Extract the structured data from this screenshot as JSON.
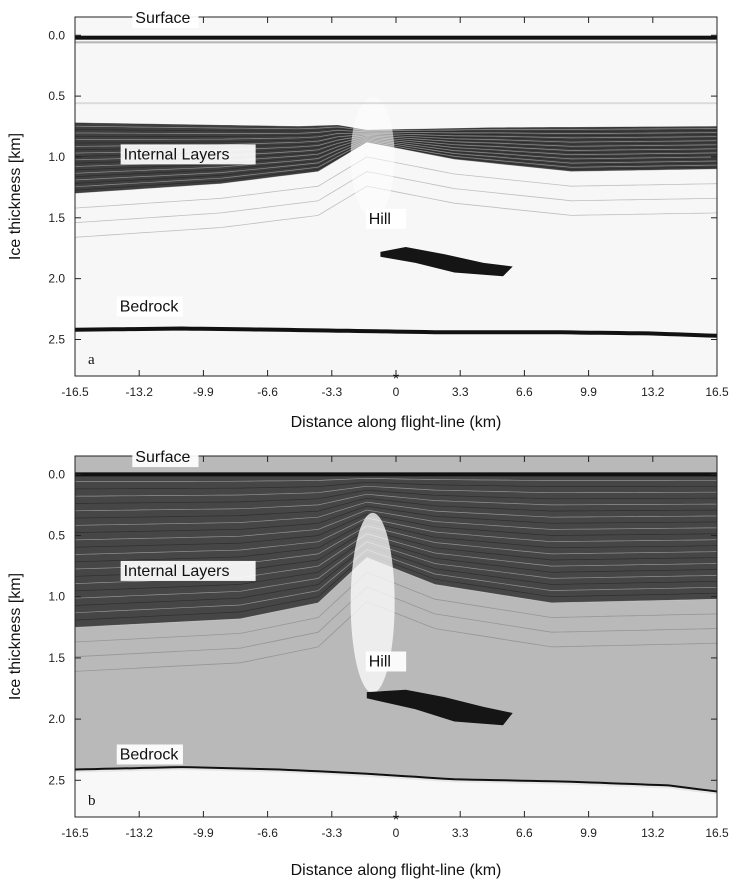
{
  "chart_data": [
    {
      "type": "heatmap",
      "panel_label": "a",
      "xlabel": "Distance along flight-line (km)",
      "ylabel": "Ice thickness [km]",
      "xlim": [
        -16.5,
        16.5
      ],
      "ylim": [
        2.8,
        -0.15
      ],
      "x_ticks": [
        "-16.5",
        "-13.2",
        "-9.9",
        "-6.6",
        "-3.3",
        "0",
        "3.3",
        "6.6",
        "9.9",
        "13.2",
        "16.5"
      ],
      "y_ticks": [
        "0.0",
        "0.5",
        "1.0",
        "1.5",
        "2.0",
        "2.5"
      ],
      "marker": "*",
      "background": "#f7f7f7",
      "annotations": [
        {
          "text": "Surface",
          "x": -13.4,
          "y": -0.1
        },
        {
          "text": "Internal Layers",
          "x": -14.0,
          "y": 1.02
        },
        {
          "text": "Hill",
          "x": -1.4,
          "y": 1.55
        },
        {
          "text": "Bedrock",
          "x": -14.2,
          "y": 2.27
        }
      ],
      "features": {
        "surface_depth": 0.02,
        "layer_band_top": [
          [
            -16.5,
            0.72
          ],
          [
            -5,
            0.75
          ],
          [
            -3,
            0.74
          ],
          [
            -1.5,
            0.78
          ],
          [
            5,
            0.76
          ],
          [
            16.5,
            0.75
          ]
        ],
        "layer_band_bottom": [
          [
            -16.5,
            1.3
          ],
          [
            -9,
            1.22
          ],
          [
            -4,
            1.12
          ],
          [
            -1.5,
            0.88
          ],
          [
            3,
            1.02
          ],
          [
            9,
            1.12
          ],
          [
            16.5,
            1.1
          ]
        ],
        "bedrock": [
          [
            -16.5,
            2.42
          ],
          [
            -11,
            2.41
          ],
          [
            -6,
            2.42
          ],
          [
            -2,
            2.43
          ],
          [
            2,
            2.44
          ],
          [
            8,
            2.44
          ],
          [
            13,
            2.45
          ],
          [
            16.5,
            2.47
          ]
        ],
        "hill": [
          [
            -0.8,
            1.78
          ],
          [
            0.5,
            1.74
          ],
          [
            2.5,
            1.8
          ],
          [
            4.5,
            1.87
          ],
          [
            6,
            1.9
          ],
          [
            5.5,
            1.98
          ],
          [
            3,
            1.95
          ],
          [
            1,
            1.87
          ],
          [
            -0.8,
            1.82
          ]
        ]
      }
    },
    {
      "type": "heatmap",
      "panel_label": "b",
      "xlabel": "Distance along flight-line (km)",
      "ylabel": "Ice thickness [km]",
      "xlim": [
        -16.5,
        16.5
      ],
      "ylim": [
        2.8,
        -0.15
      ],
      "x_ticks": [
        "-16.5",
        "-13.2",
        "-9.9",
        "-6.6",
        "-3.3",
        "0",
        "3.3",
        "6.6",
        "9.9",
        "13.2",
        "16.5"
      ],
      "y_ticks": [
        "0.0",
        "0.5",
        "1.0",
        "1.5",
        "2.0",
        "2.5"
      ],
      "marker": "*",
      "background": "#b9b9b9",
      "annotations": [
        {
          "text": "Surface",
          "x": -13.4,
          "y": -0.1
        },
        {
          "text": "Internal Layers",
          "x": -14.0,
          "y": 0.83
        },
        {
          "text": "Hill",
          "x": -1.4,
          "y": 1.57
        },
        {
          "text": "Bedrock",
          "x": -14.2,
          "y": 2.33
        }
      ],
      "features": {
        "surface_depth": 0.0,
        "layer_band_top": [
          [
            -16.5,
            0.0
          ],
          [
            16.5,
            0.0
          ]
        ],
        "layer_band_bottom": [
          [
            -16.5,
            1.25
          ],
          [
            -8,
            1.18
          ],
          [
            -4,
            1.05
          ],
          [
            -1.5,
            0.68
          ],
          [
            2,
            0.9
          ],
          [
            8,
            1.05
          ],
          [
            16.5,
            1.02
          ]
        ],
        "bedrock": [
          [
            -16.5,
            2.42
          ],
          [
            -11,
            2.4
          ],
          [
            -6,
            2.42
          ],
          [
            -2,
            2.45
          ],
          [
            3,
            2.5
          ],
          [
            9,
            2.52
          ],
          [
            14,
            2.55
          ],
          [
            16.5,
            2.6
          ]
        ],
        "hill": [
          [
            -1.5,
            1.78
          ],
          [
            0.5,
            1.76
          ],
          [
            2.5,
            1.82
          ],
          [
            4.5,
            1.9
          ],
          [
            6,
            1.95
          ],
          [
            5.5,
            2.05
          ],
          [
            3,
            2.02
          ],
          [
            1,
            1.92
          ],
          [
            -1.5,
            1.83
          ]
        ]
      }
    }
  ]
}
